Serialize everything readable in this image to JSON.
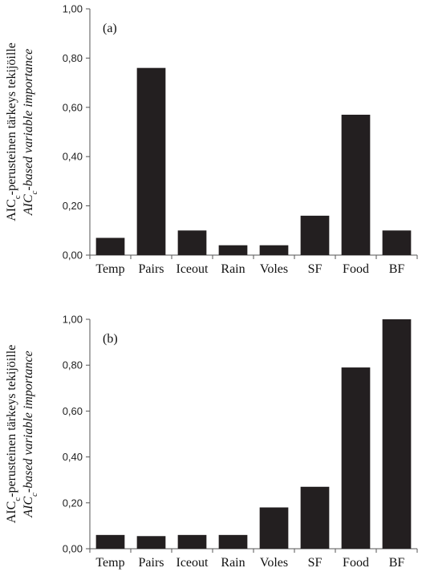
{
  "chart_data": [
    {
      "type": "bar",
      "panel_label": "(a)",
      "categories": [
        "Temp",
        "Pairs",
        "Iceout",
        "Rain",
        "Voles",
        "SF",
        "Food",
        "BF"
      ],
      "values": [
        0.07,
        0.76,
        0.1,
        0.04,
        0.04,
        0.16,
        0.57,
        0.1
      ],
      "ylim": [
        0,
        1
      ],
      "yticks": [
        "0,00",
        "0,20",
        "0,40",
        "0,60",
        "0,80",
        "1,00"
      ],
      "ylabel_line1": {
        "pre": "AIC",
        "sub": "c",
        "post": "-perusteinen tärkeys tekijöille"
      },
      "ylabel_line2": {
        "pre": "AIC",
        "sub": "c",
        "post": "-based variable importance"
      },
      "grid": false,
      "bar_color": "#231f20"
    },
    {
      "type": "bar",
      "panel_label": "(b)",
      "categories": [
        "Temp",
        "Pairs",
        "Iceout",
        "Rain",
        "Voles",
        "SF",
        "Food",
        "BF"
      ],
      "values": [
        0.06,
        0.055,
        0.06,
        0.06,
        0.18,
        0.27,
        0.79,
        1.0
      ],
      "ylim": [
        0,
        1
      ],
      "yticks": [
        "0,00",
        "0,20",
        "0,40",
        "0,60",
        "0,80",
        "1,00"
      ],
      "ylabel_line1": {
        "pre": "AIC",
        "sub": "c",
        "post": "-perusteinen tärkeys tekijöille"
      },
      "ylabel_line2": {
        "pre": "AIC",
        "sub": "c",
        "post": "-based variable importance"
      },
      "grid": false,
      "bar_color": "#231f20"
    }
  ]
}
